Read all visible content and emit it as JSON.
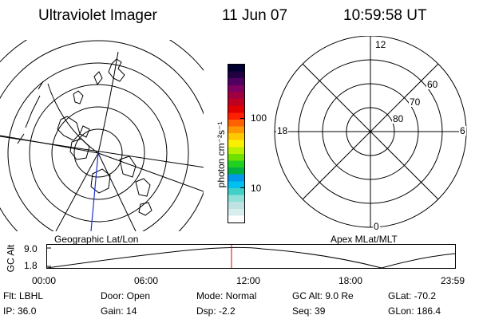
{
  "header": {
    "title": "Ultraviolet Imager",
    "date": "11 Jun 07",
    "time": "10:59:58 UT"
  },
  "colorbar": {
    "unit_label": "photon cm⁻²s⁻¹",
    "ticks": [
      {
        "label": "100",
        "value": 100
      },
      {
        "label": "10",
        "value": 10
      }
    ],
    "colors": [
      "#ffffff",
      "#d8eeee",
      "#bfe3e3",
      "#8fe0d8",
      "#40d0c8",
      "#00c0f0",
      "#0098e8",
      "#00b040",
      "#20d020",
      "#70e000",
      "#b8f000",
      "#f8f000",
      "#ffc800",
      "#ff9800",
      "#ff6000",
      "#ff2000",
      "#e00000",
      "#c00020",
      "#a00040",
      "#800060",
      "#500060",
      "#200040",
      "#000030"
    ]
  },
  "left_map": {
    "label": "Geographic Lat/Lon"
  },
  "right_map": {
    "label": "Apex MLat/MLT",
    "mlt_labels": {
      "top": "12",
      "left": "18",
      "right": "6",
      "bottom": "0"
    },
    "lat_labels": [
      "60",
      "70",
      "80"
    ]
  },
  "altitude_plot": {
    "ylabel": "GC Alt",
    "y_ticks": [
      "9.0",
      "1.8"
    ],
    "x_ticks": [
      "00:00",
      "06:00",
      "12:00",
      "18:00",
      "23:59"
    ],
    "current_time_marker_color": "#e00000"
  },
  "status": {
    "flt": "Flt: LBHL",
    "ip": "IP: 36.0",
    "door": "Door: Open",
    "gain": "Gain: 14",
    "mode": "Mode: Normal",
    "dsp": "Dsp:    -2.2",
    "gc_alt": "GC Alt: 9.0 Re",
    "seq": "Seq: 39",
    "glat": "GLat: -70.2",
    "glon": "GLon: 186.4"
  }
}
